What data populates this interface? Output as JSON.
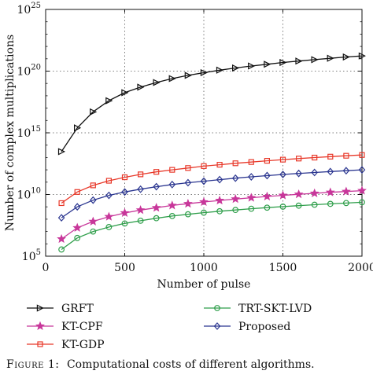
{
  "chart_data": {
    "type": "line",
    "xlabel": "Number of pulse",
    "ylabel": "Number of complex multiplications",
    "xlim": [
      0,
      2000
    ],
    "ylim": [
      100000,
      1e+25
    ],
    "yscale": "log",
    "grid": true,
    "legend_placement": "below-plot",
    "x_ticks": [
      "0",
      "500",
      "1000",
      "1500",
      "2000"
    ],
    "y_ticks": [
      {
        "base": "10",
        "exp": "5"
      },
      {
        "base": "10",
        "exp": "10"
      },
      {
        "base": "10",
        "exp": "15"
      },
      {
        "base": "10",
        "exp": "20"
      },
      {
        "base": "10",
        "exp": "25"
      }
    ],
    "x": [
      100,
      200,
      300,
      400,
      500,
      600,
      700,
      800,
      900,
      1000,
      1100,
      1200,
      1300,
      1400,
      1500,
      1600,
      1700,
      1800,
      1900,
      2000
    ],
    "series": [
      {
        "name": "GRFT",
        "color": "#111111",
        "marker": "triangle-right",
        "values": [
          30000000000000.0,
          2500000000000000.0,
          5e+16,
          4e+17,
          1.8e+18,
          5e+18,
          1.2e+19,
          2.5e+19,
          4.5e+19,
          7.5e+19,
          1.2e+20,
          1.8e+20,
          2.6e+20,
          3.6e+20,
          5e+20,
          6.5e+20,
          8.5e+20,
          1.1e+21,
          1.4e+21,
          1.7e+21
        ]
      },
      {
        "name": "KT-CPF",
        "color": "#c8379a",
        "marker": "star",
        "values": [
          2500000.0,
          20000000.0,
          65000000.0,
          160000000.0,
          320000000.0,
          550000000.0,
          850000000.0,
          1300000000.0,
          1800000000.0,
          2500000000.0,
          3300000000.0,
          4300000000.0,
          5500000000.0,
          6900000000.0,
          8500000000.0,
          10500000000.0,
          12500000000.0,
          15000000000.0,
          17500000000.0,
          20500000000.0
        ]
      },
      {
        "name": "KT-GDP",
        "color": "#e8392a",
        "marker": "square",
        "values": [
          2000000000.0,
          16000000000.0,
          55000000000.0,
          130000000000.0,
          250000000000.0,
          430000000000.0,
          680000000000.0,
          1000000000000.0,
          1400000000000.0,
          2000000000000.0,
          2600000000000.0,
          3400000000000.0,
          4300000000000.0,
          5400000000000.0,
          6700000000000.0,
          8200000000000.0,
          9800000000000.0,
          11700000000000.0,
          13800000000000.0,
          16000000000000.0
        ]
      },
      {
        "name": "TRT-SKT-LVD",
        "color": "#2e9e4a",
        "marker": "circle",
        "values": [
          350000.0,
          3000000.0,
          10000000.0,
          23000000.0,
          45000000.0,
          75000000.0,
          120000000.0,
          180000000.0,
          250000000.0,
          340000000.0,
          440000000.0,
          560000000.0,
          700000000.0,
          860000000.0,
          1040000000.0,
          1250000000.0,
          1480000000.0,
          1740000000.0,
          2030000000.0,
          2350000000.0
        ]
      },
      {
        "name": "Proposed",
        "color": "#2b3690",
        "marker": "diamond",
        "values": [
          130000000.0,
          1000000000.0,
          3500000000.0,
          8500000000.0,
          16000000000.0,
          27000000000.0,
          43000000000.0,
          64000000000.0,
          90000000000.0,
          120000000000.0,
          160000000000.0,
          210000000000.0,
          270000000000.0,
          340000000000.0,
          420000000000.0,
          510000000000.0,
          610000000000.0,
          720000000000.0,
          850000000000.0,
          1000000000000.0
        ]
      }
    ]
  },
  "caption": {
    "label": "Figure 1:",
    "text": "Computational costs of different algorithms."
  }
}
